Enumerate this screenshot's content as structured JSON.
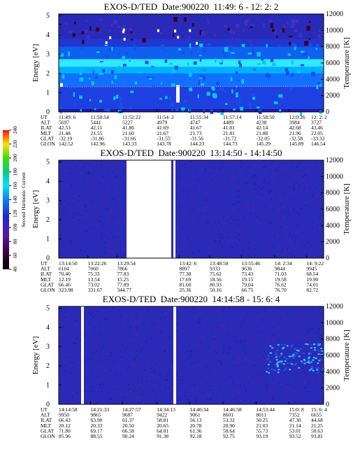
{
  "panels": [
    {
      "title": "EXOS-D/TED  Date:900220  11:49: 6 - 12: 2: 2",
      "y_label": "Energy [eV]",
      "y2_label": "Temperature [K]",
      "ylim": [
        0,
        5.1
      ],
      "yticks": [
        0,
        1,
        2,
        3,
        4,
        5
      ],
      "y2lim": [
        0,
        12000
      ],
      "y2ticks": [
        0,
        2000,
        4000,
        6000,
        8000,
        10000,
        12000
      ],
      "table": {
        "row_labels": [
          "UT",
          "ALT",
          "ILAT",
          "MLT",
          "GLAT",
          "GLON"
        ],
        "rows": [
          [
            "11:49: 6",
            "11:50:54",
            "11:52:22",
            "11:54: 2",
            "11:55:34",
            "11:57:14",
            "11:58:50",
            "12:0:26",
            "12: 2: 2"
          ],
          [
            "5697",
            "5441",
            "5227",
            "4979",
            "4747",
            "4489",
            "4238",
            "3984",
            "3727"
          ],
          [
            "42.53",
            "42.11",
            "41.86",
            "41.69",
            "41.67",
            "41.81",
            "42.14",
            "42.68",
            "43.46"
          ],
          [
            "21.48",
            "21.55",
            "21.60",
            "21.67",
            "21.73",
            "21.81",
            "21.88",
            "21.96",
            "22.05"
          ],
          [
            "-32.19",
            "-31.86",
            "-31.66",
            "-31.55",
            "-31.56",
            "-31.72",
            "-32.05",
            "-32.58",
            "-33.33"
          ],
          [
            "142.52",
            "142.96",
            "143.33",
            "143.78",
            "144.23",
            "144.73",
            "145.29",
            "145.89",
            "146.54"
          ]
        ]
      }
    },
    {
      "title": "EXOS-D/TED  Date:900220  13:14:50 - 14:14:50",
      "y_label": "Energy [eV]",
      "y2_label": "Temperature [K]",
      "ylim": [
        0,
        5.1
      ],
      "yticks": [
        0,
        1,
        2,
        3,
        4,
        5
      ],
      "y2lim": [
        0,
        12000
      ],
      "y2ticks": [
        0,
        2000,
        4000,
        6000,
        8000,
        10000,
        12000
      ],
      "table": {
        "row_labels": [
          "UT",
          "ALT",
          "ILAT",
          "MLT",
          "GLAT",
          "GLON"
        ],
        "rows": [
          [
            "13:14:50",
            "13:22:26",
            "13:29:54",
            "13:42: 6",
            "13:48:58",
            "13:55:46",
            "14: 2:34",
            "14: 9:22"
          ],
          [
            "6104",
            "7060",
            "7866",
            "8897",
            "9333",
            "9636",
            "9844",
            "9945"
          ],
          [
            "70.40",
            "75.33",
            "77.83",
            "77.38",
            "75.62",
            "73.43",
            "71.03",
            "68.54"
          ],
          [
            "12.19",
            "13.54",
            "15.25",
            "17.69",
            "18.56",
            "19.15",
            "19.58",
            "19.90"
          ],
          [
            "66.46",
            "73.02",
            "77.89",
            "81.60",
            "80.93",
            "79.04",
            "76.62",
            "74.01"
          ],
          [
            "323.98",
            "331.67",
            "344.77",
            "25.36",
            "50.16",
            "66.75",
            "76.70",
            "82.72"
          ]
        ]
      }
    },
    {
      "title": "EXOS-D/TED  Date:900220  14:14:58 - 15: 6: 4",
      "y_label": "Energy [eV]",
      "y2_label": "Temperature [K]",
      "ylim": [
        0,
        5.1
      ],
      "yticks": [
        0,
        1,
        2,
        3,
        4,
        5
      ],
      "y2lim": [
        0,
        12000
      ],
      "y2ticks": [
        0,
        2000,
        4000,
        6000,
        8000,
        10000,
        12000
      ],
      "table": {
        "row_labels": [
          "UT",
          "ALT",
          "ILAT",
          "MLT",
          "GLAT",
          "GLON"
        ],
        "rows": [
          [
            "14:14:58",
            "14:21:33",
            "14:27:57",
            "14:34:13",
            "14:40:34",
            "14:46:58",
            "14:53:44",
            "15:0: 8",
            "15: 6: 4"
          ],
          [
            "9950",
            "9865",
            "9687",
            "9422",
            "9061",
            "8601",
            "8011",
            "7352",
            "6655"
          ],
          [
            "66.43",
            "63.90",
            "61.37",
            "58.81",
            "56.13",
            "53.32",
            "50.25",
            "47.30",
            "44.68"
          ],
          [
            "20.12",
            "20.33",
            "20.50",
            "20.65",
            "20.78",
            "20.90",
            "21.03",
            "21.14",
            "21.25"
          ],
          [
            "71.80",
            "69.17",
            "66.58",
            "64.01",
            "61.36",
            "58.64",
            "55.73",
            "53.01",
            "50.63"
          ],
          [
            "85.96",
            "88.55",
            "90.24",
            "91.38",
            "92.18",
            "92.75",
            "93.19",
            "93.52",
            "93.81"
          ]
        ]
      }
    }
  ],
  "colorbar": {
    "label": "Second Harmonic Current",
    "ticks": [
      40,
      60,
      80,
      100,
      120,
      140,
      160,
      180,
      200,
      220,
      240
    ]
  }
}
